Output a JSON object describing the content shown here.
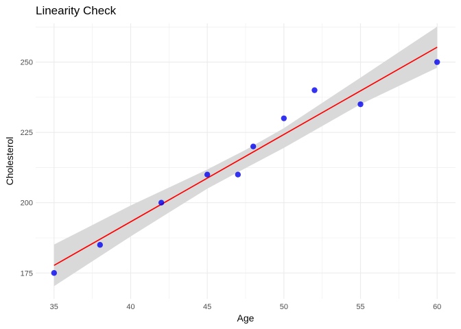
{
  "chart_data": {
    "type": "scatter",
    "title": "Linearity Check",
    "xlabel": "Age",
    "ylabel": "Cholesterol",
    "xlim": [
      33.8,
      61.2
    ],
    "ylim": [
      165.8,
      263.8
    ],
    "x_ticks": [
      35,
      40,
      45,
      50,
      55,
      60
    ],
    "y_ticks": [
      175,
      200,
      225,
      250
    ],
    "grid": true,
    "points": [
      {
        "x": 35,
        "y": 175
      },
      {
        "x": 38,
        "y": 185
      },
      {
        "x": 42,
        "y": 200
      },
      {
        "x": 45,
        "y": 210
      },
      {
        "x": 47,
        "y": 210
      },
      {
        "x": 48,
        "y": 220
      },
      {
        "x": 50,
        "y": 230
      },
      {
        "x": 52,
        "y": 240
      },
      {
        "x": 55,
        "y": 235
      },
      {
        "x": 60,
        "y": 250
      }
    ],
    "fit_line": {
      "x": [
        35,
        60
      ],
      "y": [
        177.7,
        255.3
      ]
    },
    "confidence_band": {
      "x": [
        35,
        40,
        45,
        47.5,
        50,
        55,
        60
      ],
      "lower": [
        170.3,
        188.0,
        205.0,
        212.3,
        219.5,
        235.0,
        248.0
      ],
      "upper": [
        185.1,
        199.0,
        211.8,
        218.8,
        226.5,
        244.5,
        262.6
      ]
    },
    "colors": {
      "points": "#0000ee",
      "line": "#ff0000",
      "band": "#d9d9d9",
      "grid": "#ebebeb"
    }
  }
}
